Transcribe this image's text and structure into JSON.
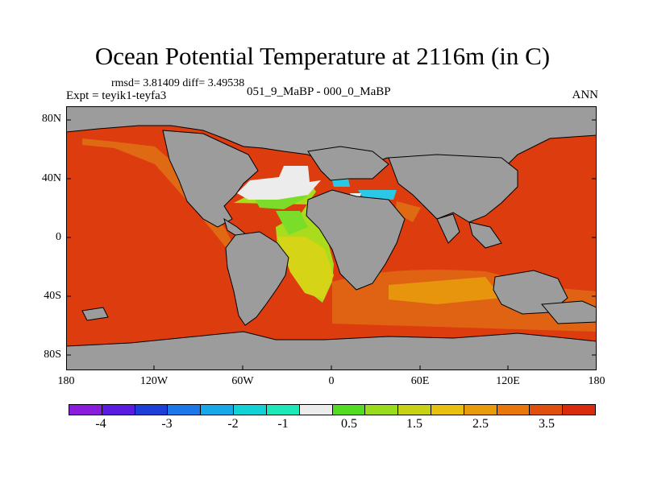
{
  "title": "Ocean Potential Temperature at 2116m (in C)",
  "stats": "rmsd= 3.81409 diff= 3.49538",
  "experiment": "Expt = teyik1-teyfa3",
  "subtitle": "051_9_MaBP - 000_0_MaBP",
  "season": "ANN",
  "y_ticks": [
    "80N",
    "40N",
    "0",
    "40S",
    "80S"
  ],
  "x_ticks": [
    "180",
    "120W",
    "60W",
    "0",
    "60E",
    "120E",
    "180"
  ],
  "colorbar": {
    "colors": [
      "#8a1cdc",
      "#5a1ce0",
      "#1e3ed8",
      "#1c78e8",
      "#18a8e8",
      "#12d2d6",
      "#1ce8b8",
      "#ececec",
      "#52dc22",
      "#98dc1c",
      "#c8d214",
      "#e8c010",
      "#e89c0c",
      "#e8780c",
      "#e0500c",
      "#d82c0c"
    ],
    "labels": [
      "-4",
      "-3",
      "-2",
      "-1",
      "0.5",
      "1.5",
      "2.5",
      "3.5"
    ]
  },
  "legend_colors": {
    "land": "#9c9c9c",
    "warm": "#dc3c0e",
    "orange": "#e06a14",
    "yellow": "#d6d416",
    "lime": "#a8dc1c",
    "green": "#7cdc2a",
    "white": "#ececec",
    "cyan": "#28c8e6"
  }
}
